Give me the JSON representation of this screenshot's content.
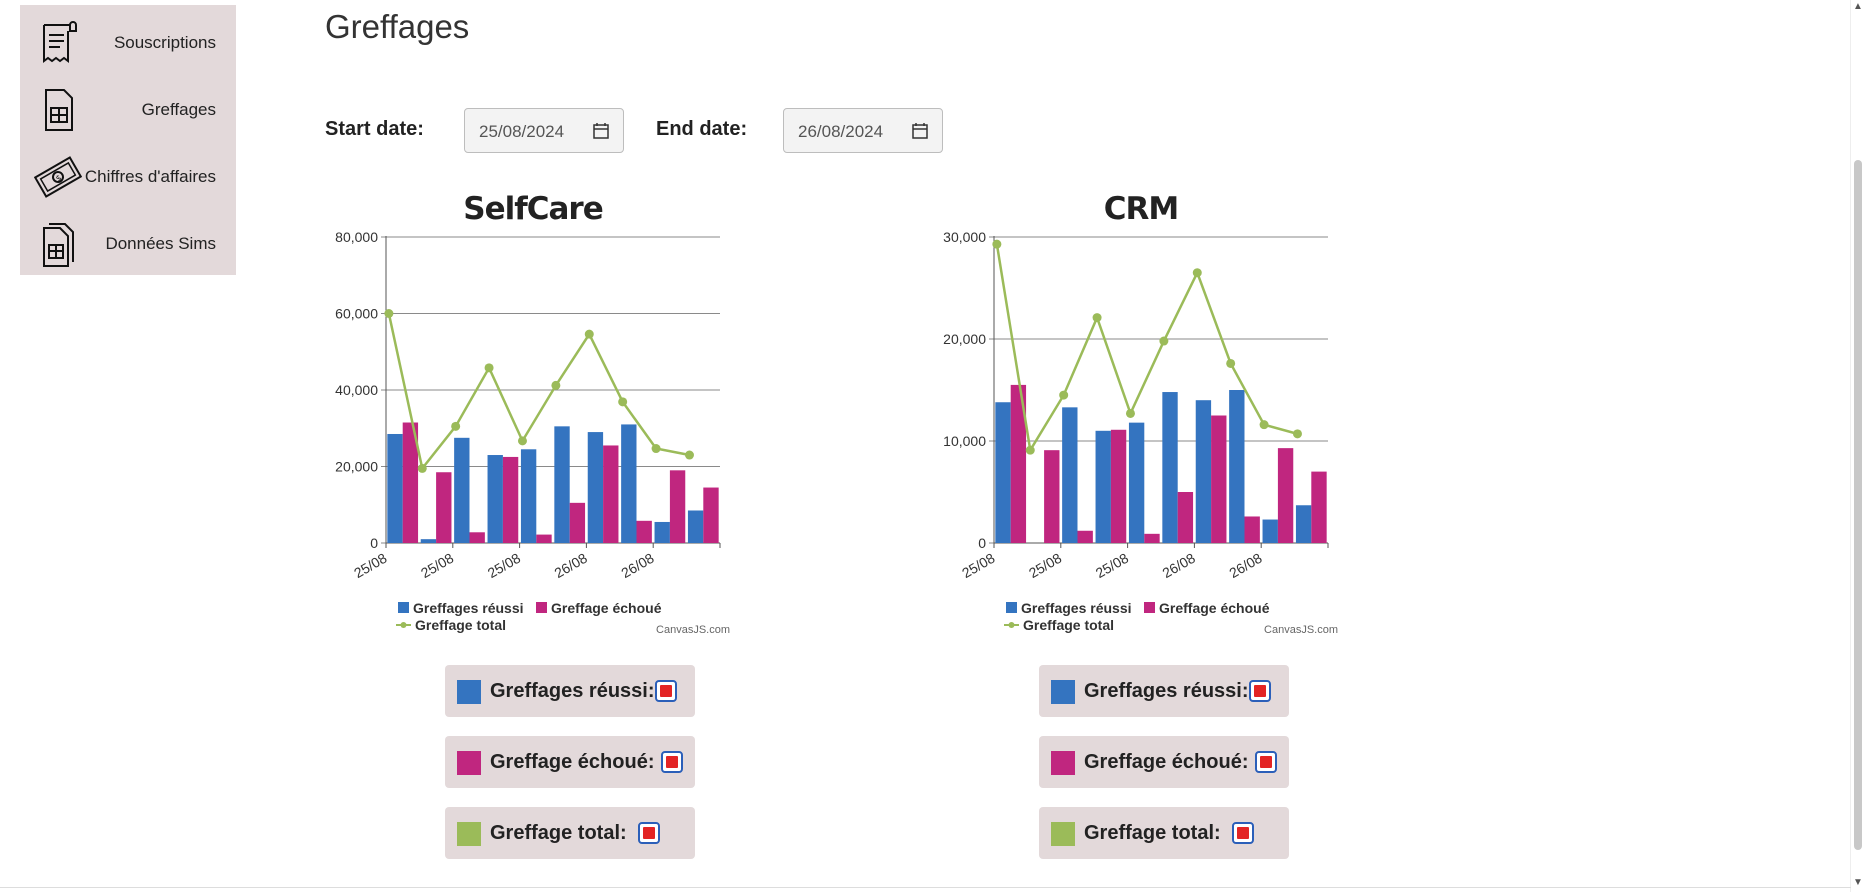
{
  "sidebar": {
    "items": [
      {
        "label": "Souscriptions",
        "icon": "receipt-icon"
      },
      {
        "label": "Greffages",
        "icon": "sim-card-icon"
      },
      {
        "label": "Chiffres d'affaires",
        "icon": "money-icon"
      },
      {
        "label": "Données Sims",
        "icon": "sim-cards-icon"
      }
    ]
  },
  "page": {
    "title": "Greffages"
  },
  "filters": {
    "start_label": "Start date:",
    "start_value": "25/08/2024",
    "end_label": "End date:",
    "end_value": "26/08/2024"
  },
  "colors": {
    "success": "#3474c0",
    "failure": "#c0267f",
    "total": "#9bbb59"
  },
  "chart_data": [
    {
      "type": "bar",
      "title": "SelfCare",
      "categories": [
        "25/08",
        "25/08",
        "25/08",
        "25/08",
        "25/08",
        "26/08",
        "26/08",
        "26/08",
        "26/08",
        "26/08"
      ],
      "x_tick_labels": [
        "25/08",
        "25/08",
        "25/08",
        "26/08",
        "26/08"
      ],
      "ylim": [
        0,
        80000
      ],
      "yticks": [
        0,
        20000,
        40000,
        60000,
        80000
      ],
      "ytick_labels": [
        "0",
        "20,000",
        "40,000",
        "60,000",
        "80,000"
      ],
      "series": [
        {
          "name": "Greffages réussi",
          "type": "bar",
          "values": [
            28500,
            1000,
            27500,
            23000,
            24500,
            30500,
            29000,
            31000,
            5500,
            8500
          ]
        },
        {
          "name": "Greffage échoué",
          "type": "bar",
          "values": [
            31500,
            18500,
            2800,
            22500,
            2200,
            10500,
            25500,
            5800,
            19000,
            14500
          ]
        },
        {
          "name": "Greffage total",
          "type": "line",
          "values": [
            60000,
            19500,
            30500,
            45800,
            26700,
            41200,
            54600,
            36900,
            24700,
            23000
          ]
        }
      ],
      "legend": [
        "Greffages réussi",
        "Greffage échoué",
        "Greffage total"
      ],
      "credit": "CanvasJS.com"
    },
    {
      "type": "bar",
      "title": "CRM",
      "categories": [
        "25/08",
        "25/08",
        "25/08",
        "25/08",
        "25/08",
        "26/08",
        "26/08",
        "26/08",
        "26/08",
        "26/08"
      ],
      "x_tick_labels": [
        "25/08",
        "25/08",
        "25/08",
        "26/08",
        "26/08"
      ],
      "ylim": [
        0,
        30000
      ],
      "yticks": [
        0,
        10000,
        20000,
        30000
      ],
      "ytick_labels": [
        "0",
        "10,000",
        "20,000",
        "30,000"
      ],
      "series": [
        {
          "name": "Greffages réussi",
          "type": "bar",
          "values": [
            13800,
            0,
            13300,
            11000,
            11800,
            14800,
            14000,
            15000,
            2300,
            3700
          ]
        },
        {
          "name": "Greffage échoué",
          "type": "bar",
          "values": [
            15500,
            9100,
            1200,
            11100,
            900,
            5000,
            12500,
            2600,
            9300,
            7000
          ]
        },
        {
          "name": "Greffage total",
          "type": "line",
          "values": [
            29300,
            9100,
            14500,
            22100,
            12700,
            19800,
            26500,
            17600,
            11600,
            10700
          ]
        }
      ],
      "legend": [
        "Greffages réussi",
        "Greffage échoué",
        "Greffage total"
      ],
      "credit": "CanvasJS.com"
    }
  ],
  "toggles": {
    "selfcare": [
      "Greffages réussi:",
      "Greffage échoué:",
      "Greffage total:"
    ],
    "crm": [
      "Greffages réussi:",
      "Greffage échoué:",
      "Greffage total:"
    ]
  }
}
